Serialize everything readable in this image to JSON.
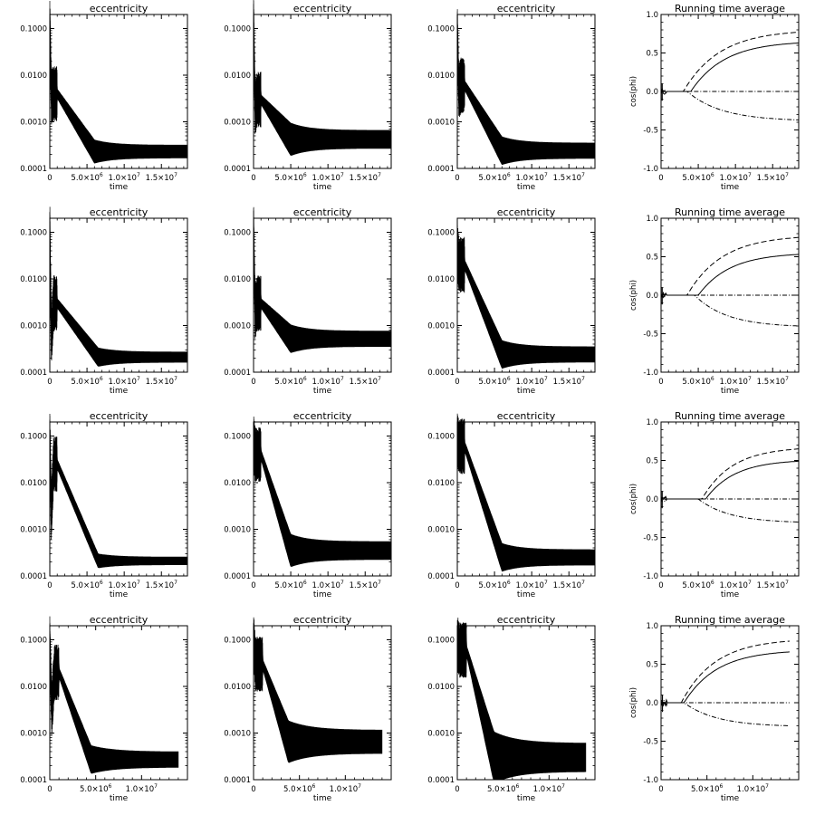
{
  "figure": {
    "ecc_title": "eccentricity",
    "avg_title": "Running time average",
    "xlabel": "time",
    "avg_ylabel": "cos(phi)",
    "ecc_ytick_labels": [
      "0.0001",
      "0.0010",
      "0.0100",
      "0.1000"
    ],
    "avg_ytick_labels": [
      "-1.0",
      "-0.5",
      "0.0",
      "0.5",
      "1.0"
    ],
    "xtick_labels_long": [
      [
        "0",
        ""
      ],
      [
        "5.0×10",
        "6"
      ],
      [
        "1.0×10",
        "7"
      ],
      [
        "1.5×10",
        "7"
      ]
    ],
    "xtick_labels_short": [
      [
        "0",
        ""
      ],
      [
        "5.0×10",
        "6"
      ],
      [
        "1.0×10",
        "7"
      ]
    ]
  },
  "chart_data": [
    {
      "type": "line",
      "title": "eccentricity",
      "xlabel": "time",
      "yscale": "log",
      "xlim": [
        0,
        18500000
      ],
      "ylim": [
        0.0001,
        0.2
      ],
      "xticks": [
        0,
        5000000,
        10000000,
        15000000
      ],
      "yticks": [
        0.0001,
        0.001,
        0.01,
        0.1
      ],
      "peak": 0.12,
      "dip": 0.0035,
      "hump": 0.004,
      "decay_end": 6000000,
      "floor": 0.00023,
      "band": 0.25,
      "t_end": 18500000
    },
    {
      "type": "line",
      "title": "eccentricity",
      "xlabel": "time",
      "yscale": "log",
      "xlim": [
        0,
        18500000
      ],
      "ylim": [
        0.0001,
        0.2
      ],
      "xticks": [
        0,
        5000000,
        10000000,
        15000000
      ],
      "yticks": [
        0.0001,
        0.001,
        0.01,
        0.1
      ],
      "peak": 0.15,
      "dip": 0.002,
      "hump": 0.003,
      "decay_end": 5000000,
      "floor": 0.00042,
      "band": 0.35,
      "t_end": 18500000
    },
    {
      "type": "line",
      "title": "eccentricity",
      "xlabel": "time",
      "yscale": "log",
      "xlim": [
        0,
        18500000
      ],
      "ylim": [
        0.0001,
        0.2
      ],
      "xticks": [
        0,
        5000000,
        10000000,
        15000000
      ],
      "yticks": [
        0.0001,
        0.001,
        0.01,
        0.1
      ],
      "peak": 0.09,
      "dip": 0.0045,
      "hump": 0.006,
      "decay_end": 6000000,
      "floor": 0.00024,
      "band": 0.3,
      "t_end": 18500000
    },
    {
      "type": "line",
      "title": "Running time average",
      "xlabel": "time",
      "ylabel": "cos(phi)",
      "xlim": [
        0,
        18500000
      ],
      "ylim": [
        -1,
        1
      ],
      "xticks": [
        0,
        5000000,
        10000000,
        15000000
      ],
      "yticks": [
        -1,
        -0.5,
        0,
        0.5,
        1
      ],
      "series": [
        {
          "name": "solid",
          "style": "solid",
          "onset": 4000000,
          "final": 0.63
        },
        {
          "name": "dashed",
          "style": "dashed",
          "onset": 3000000,
          "final": 0.77
        },
        {
          "name": "dash-dot-zero",
          "style": "dashdot",
          "onset": 0,
          "final": 0.0
        },
        {
          "name": "dash-dot-lower",
          "style": "dashdot",
          "onset": 3500000,
          "final": -0.37
        }
      ],
      "t_end": 18500000
    },
    {
      "type": "line",
      "title": "eccentricity",
      "xlabel": "time",
      "yscale": "log",
      "xlim": [
        0,
        18500000
      ],
      "ylim": [
        0.0001,
        0.2
      ],
      "xticks": [
        0,
        5000000,
        10000000,
        15000000
      ],
      "yticks": [
        0.0001,
        0.001,
        0.01,
        0.1
      ],
      "peak": 0.12,
      "dip": 0.0005,
      "hump": 0.003,
      "decay_end": 6500000,
      "floor": 0.00021,
      "band": 0.2,
      "t_end": 18500000
    },
    {
      "type": "line",
      "title": "eccentricity",
      "xlabel": "time",
      "yscale": "log",
      "xlim": [
        0,
        18500000
      ],
      "ylim": [
        0.0001,
        0.2
      ],
      "xticks": [
        0,
        5000000,
        10000000,
        15000000
      ],
      "yticks": [
        0.0001,
        0.001,
        0.01,
        0.1
      ],
      "peak": 0.13,
      "dip": 0.002,
      "hump": 0.003,
      "decay_end": 5000000,
      "floor": 0.00052,
      "band": 0.3,
      "t_end": 18500000
    },
    {
      "type": "line",
      "title": "eccentricity",
      "xlabel": "time",
      "yscale": "log",
      "xlim": [
        0,
        18500000
      ],
      "ylim": [
        0.0001,
        0.2
      ],
      "xticks": [
        0,
        5000000,
        10000000,
        15000000
      ],
      "yticks": [
        0.0001,
        0.001,
        0.01,
        0.1
      ],
      "peak": 0.045,
      "dip": 0.02,
      "hump": 0.02,
      "decay_end": 6000000,
      "floor": 0.00024,
      "band": 0.3,
      "t_end": 18500000
    },
    {
      "type": "line",
      "title": "Running time average",
      "xlabel": "time",
      "ylabel": "cos(phi)",
      "xlim": [
        0,
        18500000
      ],
      "ylim": [
        -1,
        1
      ],
      "xticks": [
        0,
        5000000,
        10000000,
        15000000
      ],
      "yticks": [
        -1,
        -0.5,
        0,
        0.5,
        1
      ],
      "series": [
        {
          "name": "solid",
          "style": "solid",
          "onset": 5000000,
          "final": 0.53
        },
        {
          "name": "dashed",
          "style": "dashed",
          "onset": 3500000,
          "final": 0.75
        },
        {
          "name": "dash-dot-zero",
          "style": "dashdot",
          "onset": 0,
          "final": 0.0
        },
        {
          "name": "dash-dot-lower",
          "style": "dashdot",
          "onset": 4500000,
          "final": -0.4
        }
      ],
      "t_end": 18500000
    },
    {
      "type": "line",
      "title": "eccentricity",
      "xlabel": "time",
      "yscale": "log",
      "xlim": [
        0,
        18500000
      ],
      "ylim": [
        0.0001,
        0.2
      ],
      "xticks": [
        0,
        5000000,
        10000000,
        15000000
      ],
      "yticks": [
        0.0001,
        0.001,
        0.01,
        0.1
      ],
      "peak": 0.1,
      "dip": 0.002,
      "hump": 0.025,
      "decay_end": 6500000,
      "floor": 0.00021,
      "band": 0.15,
      "t_end": 18500000
    },
    {
      "type": "line",
      "title": "eccentricity",
      "xlabel": "time",
      "yscale": "log",
      "xlim": [
        0,
        18500000
      ],
      "ylim": [
        0.0001,
        0.2
      ],
      "xticks": [
        0,
        5000000,
        10000000,
        15000000
      ],
      "yticks": [
        0.0001,
        0.001,
        0.01,
        0.1
      ],
      "peak": 0.08,
      "dip": 0.04,
      "hump": 0.04,
      "decay_end": 5000000,
      "floor": 0.00035,
      "band": 0.35,
      "t_end": 18500000
    },
    {
      "type": "line",
      "title": "eccentricity",
      "xlabel": "time",
      "yscale": "log",
      "xlim": [
        0,
        18500000
      ],
      "ylim": [
        0.0001,
        0.2
      ],
      "xticks": [
        0,
        5000000,
        10000000,
        15000000
      ],
      "yticks": [
        0.0001,
        0.001,
        0.01,
        0.1
      ],
      "peak": 0.085,
      "dip": 0.06,
      "hump": 0.06,
      "decay_end": 6000000,
      "floor": 0.00025,
      "band": 0.3,
      "t_end": 18500000
    },
    {
      "type": "line",
      "title": "Running time average",
      "xlabel": "time",
      "ylabel": "cos(phi)",
      "xlim": [
        0,
        18500000
      ],
      "ylim": [
        -1,
        1
      ],
      "xticks": [
        0,
        5000000,
        10000000,
        15000000
      ],
      "yticks": [
        -1,
        -0.5,
        0,
        0.5,
        1
      ],
      "series": [
        {
          "name": "solid",
          "style": "solid",
          "onset": 6000000,
          "final": 0.49
        },
        {
          "name": "dashed",
          "style": "dashed",
          "onset": 5500000,
          "final": 0.65
        },
        {
          "name": "dash-dot-zero",
          "style": "dashdot",
          "onset": 0,
          "final": 0.0
        },
        {
          "name": "dash-dot-lower",
          "style": "dashdot",
          "onset": 5000000,
          "final": -0.3
        }
      ],
      "t_end": 18500000
    },
    {
      "type": "line",
      "title": "eccentricity",
      "xlabel": "time",
      "yscale": "log",
      "xlim": [
        0,
        15000000
      ],
      "ylim": [
        0.0001,
        0.2
      ],
      "xticks": [
        0,
        5000000,
        10000000
      ],
      "yticks": [
        0.0001,
        0.001,
        0.01,
        0.1
      ],
      "peak": 0.1,
      "dip": 0.003,
      "hump": 0.02,
      "decay_end": 4500000,
      "floor": 0.00027,
      "band": 0.3,
      "t_end": 14000000
    },
    {
      "type": "line",
      "title": "eccentricity",
      "xlabel": "time",
      "yscale": "log",
      "xlim": [
        0,
        15000000
      ],
      "ylim": [
        0.0001,
        0.2
      ],
      "xticks": [
        0,
        5000000,
        10000000
      ],
      "yticks": [
        0.0001,
        0.001,
        0.01,
        0.1
      ],
      "peak": 0.1,
      "dip": 0.03,
      "hump": 0.03,
      "decay_end": 3800000,
      "floor": 0.00065,
      "band": 0.45,
      "t_end": 14000000
    },
    {
      "type": "line",
      "title": "eccentricity",
      "xlabel": "time",
      "yscale": "log",
      "xlim": [
        0,
        15000000
      ],
      "ylim": [
        0.0001,
        0.2
      ],
      "xticks": [
        0,
        5000000,
        10000000
      ],
      "yticks": [
        0.0001,
        0.001,
        0.01,
        0.1
      ],
      "peak": 0.09,
      "dip": 0.06,
      "hump": 0.06,
      "decay_end": 4000000,
      "floor": 0.0003,
      "band": 0.55,
      "t_end": 14000000
    },
    {
      "type": "line",
      "title": "Running time average",
      "xlabel": "time",
      "ylabel": "cos(phi)",
      "xlim": [
        0,
        15000000
      ],
      "ylim": [
        -1,
        1
      ],
      "xticks": [
        0,
        5000000,
        10000000
      ],
      "yticks": [
        -1,
        -0.5,
        0,
        0.5,
        1
      ],
      "series": [
        {
          "name": "solid",
          "style": "solid",
          "onset": 2500000,
          "final": 0.66
        },
        {
          "name": "dashed",
          "style": "dashed",
          "onset": 2200000,
          "final": 0.8
        },
        {
          "name": "dash-dot-zero",
          "style": "dashdot",
          "onset": 0,
          "final": 0.0
        },
        {
          "name": "dash-dot-lower",
          "style": "dashdot",
          "onset": 2500000,
          "final": -0.3
        }
      ],
      "t_end": 14000000
    }
  ]
}
